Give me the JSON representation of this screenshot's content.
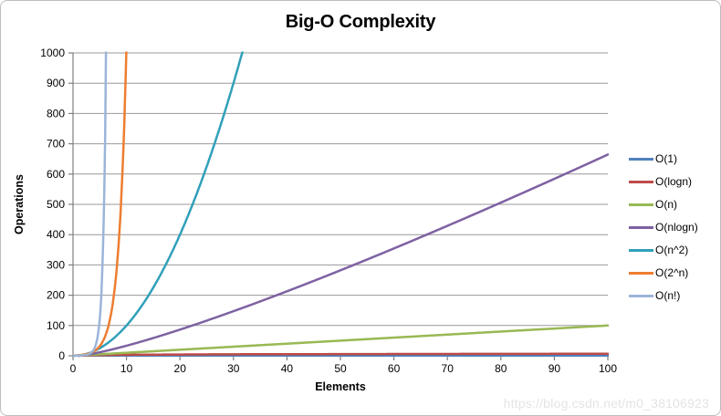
{
  "chart_data": {
    "type": "line",
    "title": "Big-O Complexity",
    "xlabel": "Elements",
    "ylabel": "Operations",
    "xlim": [
      0,
      100
    ],
    "ylim": [
      0,
      1000
    ],
    "x_ticks": [
      0,
      10,
      20,
      30,
      40,
      50,
      60,
      70,
      80,
      90,
      100
    ],
    "y_ticks": [
      0,
      100,
      200,
      300,
      400,
      500,
      600,
      700,
      800,
      900,
      1000
    ],
    "grid": "horizontal-major",
    "legend_position": "right",
    "series": [
      {
        "name": "O(1)",
        "color": "#4F81BD",
        "formula": "1",
        "points": [
          [
            0,
            1
          ],
          [
            50,
            1
          ],
          [
            100,
            1
          ]
        ]
      },
      {
        "name": "O(logn)",
        "color": "#BE4B48",
        "formula": "log2(n)",
        "points": [
          [
            1,
            0
          ],
          [
            10,
            3.3
          ],
          [
            50,
            5.6
          ],
          [
            100,
            6.6
          ]
        ]
      },
      {
        "name": "O(n)",
        "color": "#98B954",
        "formula": "n",
        "points": [
          [
            1,
            1
          ],
          [
            25,
            25
          ],
          [
            50,
            50
          ],
          [
            75,
            75
          ],
          [
            100,
            100
          ]
        ]
      },
      {
        "name": "O(nlogn)",
        "color": "#7E61A2",
        "formula": "n*log2(n)",
        "points": [
          [
            1,
            0
          ],
          [
            10,
            33
          ],
          [
            25,
            116
          ],
          [
            50,
            282
          ],
          [
            75,
            467
          ],
          [
            100,
            664
          ]
        ]
      },
      {
        "name": "O(n^2)",
        "color": "#31A0BA",
        "formula": "n^2",
        "points": [
          [
            1,
            1
          ],
          [
            10,
            100
          ],
          [
            20,
            400
          ],
          [
            30,
            900
          ],
          [
            31.6,
            1000
          ]
        ]
      },
      {
        "name": "O(2^n)",
        "color": "#ED7D31",
        "formula": "2^n",
        "points": [
          [
            1,
            2
          ],
          [
            5,
            32
          ],
          [
            8,
            256
          ],
          [
            9,
            512
          ],
          [
            10,
            1000
          ]
        ]
      },
      {
        "name": "O(n!)",
        "color": "#9BB5D9",
        "formula": "n!",
        "points": [
          [
            1,
            1
          ],
          [
            3,
            6
          ],
          [
            4,
            24
          ],
          [
            5,
            120
          ],
          [
            6,
            720
          ],
          [
            6.5,
            1000
          ]
        ]
      }
    ]
  },
  "colors": {
    "gridline": "#999999",
    "axis": "#7f7f7f",
    "frame_border": "#bdbdbd"
  },
  "watermark": {
    "text": "https://blog.csdn.net/m0_38106923"
  }
}
